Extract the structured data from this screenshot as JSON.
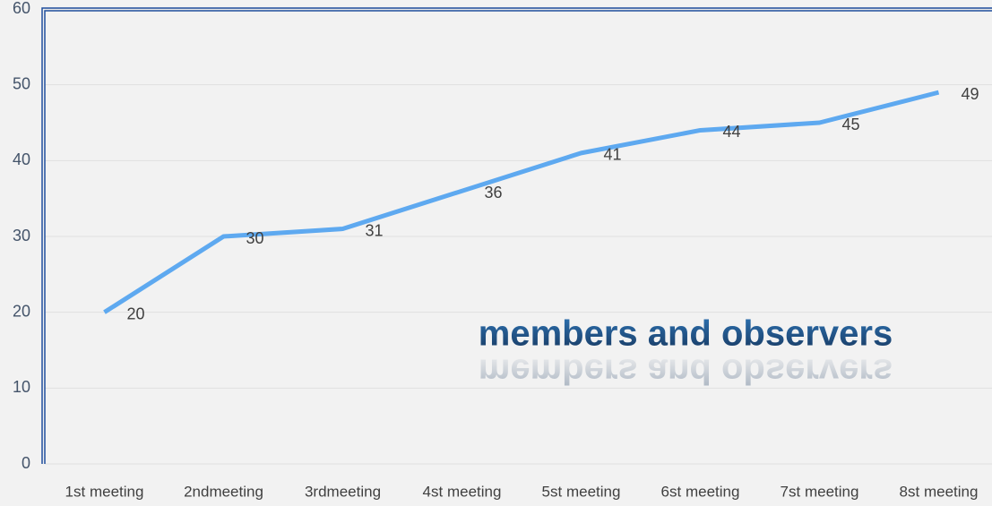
{
  "chart_data": {
    "type": "line",
    "title": "members and observers",
    "categories": [
      "1st meeting",
      "2ndmeeting",
      "3rdmeeting",
      "4st meeting",
      "5st meeting",
      "6st meeting",
      "7st meeting",
      "8st meeting"
    ],
    "values": [
      20,
      30,
      31,
      36,
      41,
      44,
      45,
      49
    ],
    "color": "#5ea9f0",
    "ylim": [
      0,
      60
    ],
    "yticks": [
      0,
      10,
      20,
      30,
      40,
      50,
      60
    ],
    "grid": true
  }
}
